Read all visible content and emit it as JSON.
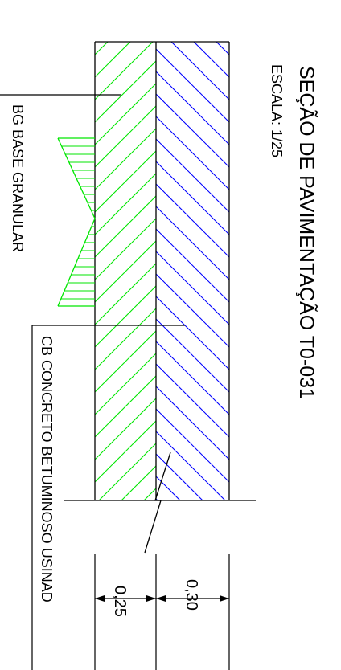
{
  "title": "SEÇÃO DE PAVIMENTAÇÃO T0-031",
  "scale": "ESCALA:  1/25",
  "labels": {
    "base": "BG  BASE  GRANULAR",
    "concrete": "CB  CONCRETO  BETUMINOSO  USINAD"
  },
  "dimensions": {
    "base_thickness": "0,25",
    "concrete_thickness": "0,30"
  },
  "colors": {
    "base_hatch": "#00e600",
    "concrete_hatch": "#0000ff",
    "lines": "#000000"
  }
}
